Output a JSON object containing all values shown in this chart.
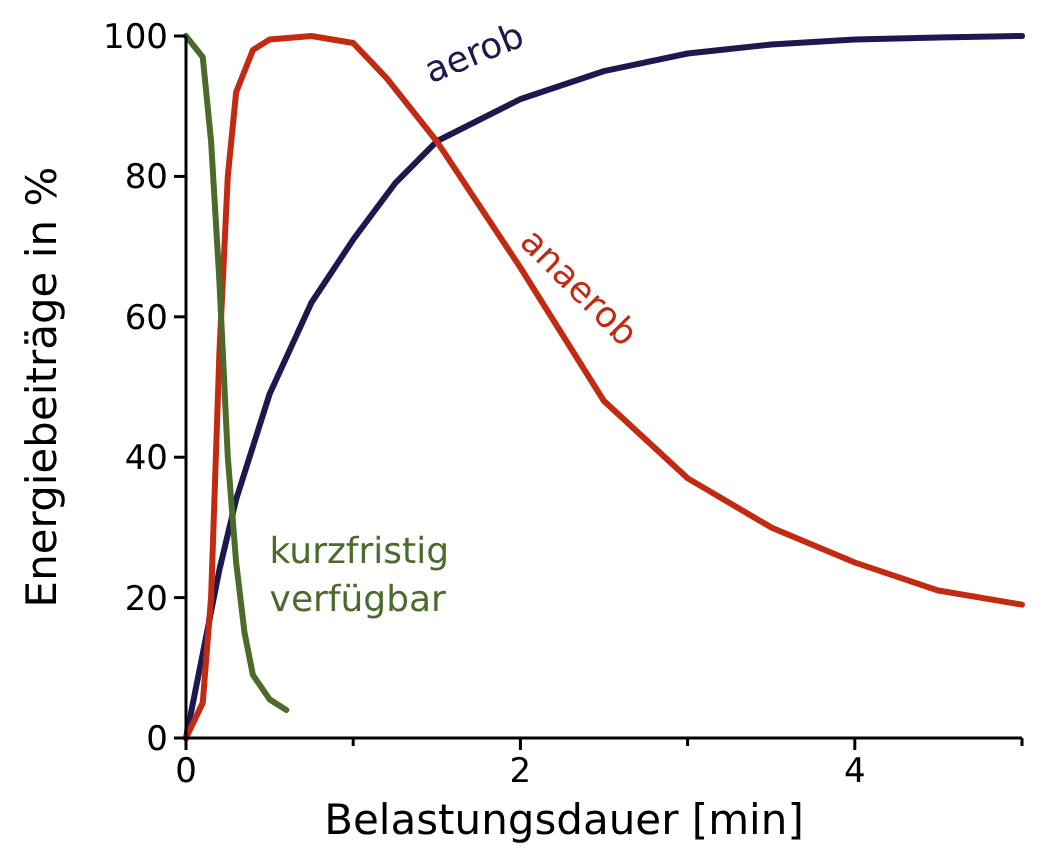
{
  "chart_data": {
    "type": "line",
    "xlabel": "Belastungsdauer [min]",
    "ylabel": "Energiebeiträge in %",
    "xlim": [
      0,
      5
    ],
    "ylim": [
      0,
      100
    ],
    "xticks": [
      0,
      {
        "value": 1,
        "label": null
      },
      2,
      {
        "value": 3,
        "label": null
      },
      4,
      {
        "value": 5,
        "label": null
      }
    ],
    "yticks": [
      0,
      20,
      40,
      60,
      80,
      100
    ],
    "grid": false,
    "marker": "none",
    "line_style": "solid",
    "series": [
      {
        "name": "aerob",
        "color": "#1c1850",
        "x": [
          0,
          0.1,
          0.2,
          0.3,
          0.5,
          0.75,
          1,
          1.25,
          1.5,
          2,
          2.5,
          3,
          3.5,
          4,
          4.5,
          5
        ],
        "values": [
          0,
          12,
          24,
          34,
          49,
          62,
          71,
          79,
          85,
          91,
          95,
          97.5,
          98.8,
          99.5,
          99.8,
          100
        ]
      },
      {
        "name": "anaerob",
        "color": "#c32a12",
        "x": [
          0,
          0.1,
          0.15,
          0.2,
          0.25,
          0.3,
          0.4,
          0.5,
          0.75,
          1,
          1.2,
          1.5,
          2,
          2.5,
          3,
          3.5,
          4,
          4.5,
          5
        ],
        "values": [
          0,
          5,
          20,
          55,
          80,
          92,
          98,
          99.5,
          100,
          99,
          94,
          85,
          67,
          48,
          37,
          30,
          25,
          21,
          19
        ]
      },
      {
        "name": "kurzfristig verfügbar",
        "color": "#4b6b2b",
        "x": [
          0,
          0.1,
          0.15,
          0.2,
          0.25,
          0.3,
          0.35,
          0.4,
          0.5,
          0.6
        ],
        "values": [
          100,
          97,
          85,
          65,
          40,
          25,
          15,
          9,
          5.5,
          4
        ]
      }
    ]
  }
}
